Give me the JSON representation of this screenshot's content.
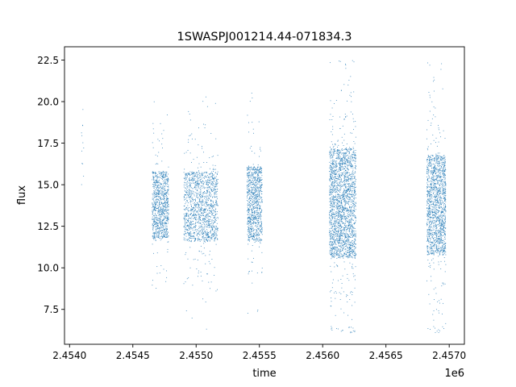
{
  "chart_data": {
    "type": "scatter",
    "title": "1SWASPJ001214.44-071834.3",
    "xlabel": "time",
    "ylabel": "flux",
    "x_offset_label": "1e6",
    "xlim": [
      2.45396,
      2.45712
    ],
    "ylim": [
      5.4,
      23.3
    ],
    "grid": false,
    "marker_color": "#1f77b4",
    "x_ticks": [
      2.454,
      2.4545,
      2.455,
      2.4555,
      2.456,
      2.4565,
      2.457
    ],
    "x_tick_labels": [
      "2.4540",
      "2.4545",
      "2.4550",
      "2.4555",
      "2.4560",
      "2.4565",
      "2.4570"
    ],
    "y_ticks": [
      7.5,
      10.0,
      12.5,
      15.0,
      17.5,
      20.0,
      22.5
    ],
    "y_tick_labels": [
      "7.5",
      "10.0",
      "12.5",
      "15.0",
      "17.5",
      "20.0",
      "22.5"
    ],
    "clusters": [
      {
        "x_range": [
          2.45409,
          2.45411
        ],
        "y_range": [
          13.8,
          20.3
        ],
        "core": [
          14.3,
          20.1
        ],
        "n": 12
      },
      {
        "x_range": [
          2.45465,
          2.45478
        ],
        "y_range": [
          8.6,
          20.2
        ],
        "core": [
          11.8,
          15.8
        ],
        "n": 900
      },
      {
        "x_range": [
          2.4549,
          2.45517
        ],
        "y_range": [
          6.1,
          21.6
        ],
        "core": [
          11.6,
          15.8
        ],
        "n": 1400
      },
      {
        "x_range": [
          2.4554,
          2.45552
        ],
        "y_range": [
          6.3,
          22.5
        ],
        "core": [
          11.6,
          16.1
        ],
        "n": 900
      },
      {
        "x_range": [
          2.45605,
          2.45626
        ],
        "y_range": [
          6.1,
          22.5
        ],
        "core": [
          10.6,
          17.2
        ],
        "n": 2200
      },
      {
        "x_range": [
          2.45682,
          2.45697
        ],
        "y_range": [
          6.1,
          22.4
        ],
        "core": [
          10.8,
          16.8
        ],
        "n": 1500
      }
    ]
  }
}
